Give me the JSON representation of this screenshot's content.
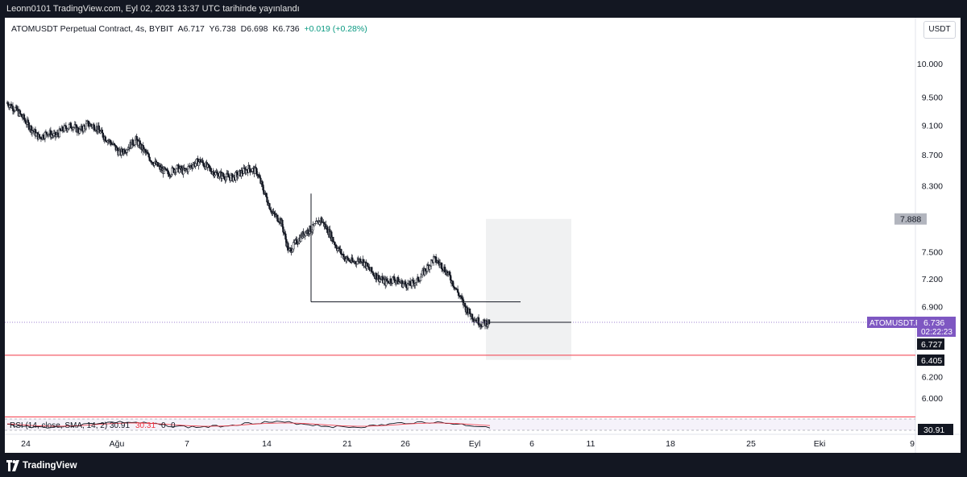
{
  "header": {
    "publish_text": "Leonn0101 TradingView.com, Eyl 02, 2023 13:37 UTC tarihinde yayınlandı"
  },
  "legend": {
    "symbol": "ATOMUSDT Perpetual Contract, 4s, BYBIT",
    "open": "A6.717",
    "high": "Y6.738",
    "low": "D6.698",
    "close": "K6.736",
    "change": "+0.019 (+0.28%)"
  },
  "currency_button": "USDT",
  "rsi": {
    "legend": "RSI (14, close, SMA, 14, 2)",
    "value1": "30.91",
    "value2": "30.31",
    "extra1": "0",
    "extra2": "0",
    "last_label": "30.91"
  },
  "price_labels": {
    "symbol_tag": "ATOMUSDT.P",
    "last_price": "6.736",
    "countdown": "02:22:23",
    "bid_label": "6.727",
    "support_label": "6.405",
    "box_top_label": "7.888"
  },
  "footer": {
    "brand": "TradingView"
  },
  "chart_data": {
    "type": "line",
    "title": "ATOMUSDT Perpetual Contract, 4s, BYBIT",
    "y_axis_ticks": [
      10.0,
      9.5,
      9.1,
      8.7,
      8.3,
      7.5,
      7.2,
      6.9,
      6.2,
      6.0
    ],
    "y_axis_tick_labels": [
      "10.000",
      "9.500",
      "9.100",
      "8.700",
      "8.300",
      "7.500",
      "7.200",
      "6.900",
      "6.200",
      "6.000"
    ],
    "x_axis_tick_labels": [
      "24",
      "Ağu",
      "7",
      "14",
      "21",
      "26",
      "Eyl",
      "6",
      "11",
      "18",
      "25",
      "Eki",
      "9"
    ],
    "ylim": [
      5.7,
      10.4
    ],
    "scale": "log",
    "grid": false,
    "series": [
      {
        "values": [
          9.42,
          9.33,
          9.2,
          9.05,
          8.93,
          9.0,
          8.95,
          9.05,
          9.1,
          9.02,
          9.12,
          9.08,
          8.95,
          8.85,
          8.72,
          8.8,
          8.9,
          8.75,
          8.62,
          8.52,
          8.45,
          8.53,
          8.48,
          8.57,
          8.62,
          8.52,
          8.45,
          8.42,
          8.4,
          8.46,
          8.52,
          8.48,
          8.2,
          7.95,
          7.87,
          7.5,
          7.62,
          7.73,
          7.78,
          7.88,
          7.73,
          7.55,
          7.43,
          7.38,
          7.42,
          7.3,
          7.22,
          7.16,
          7.2,
          7.15,
          7.13,
          7.18,
          7.3,
          7.42,
          7.35,
          7.22,
          7.05,
          6.88,
          6.78,
          6.72,
          6.74
        ]
      }
    ],
    "annotations": {
      "horizontal_segment": 6.95,
      "support_line": 6.405,
      "last_price": 6.736,
      "bid_price": 6.727,
      "rectangle_top": 7.888,
      "rectangle_bottom": 6.36,
      "upper_red_line": 5.83
    },
    "indicator": {
      "name": "RSI",
      "last": 30.91,
      "sma": 30.31
    }
  }
}
